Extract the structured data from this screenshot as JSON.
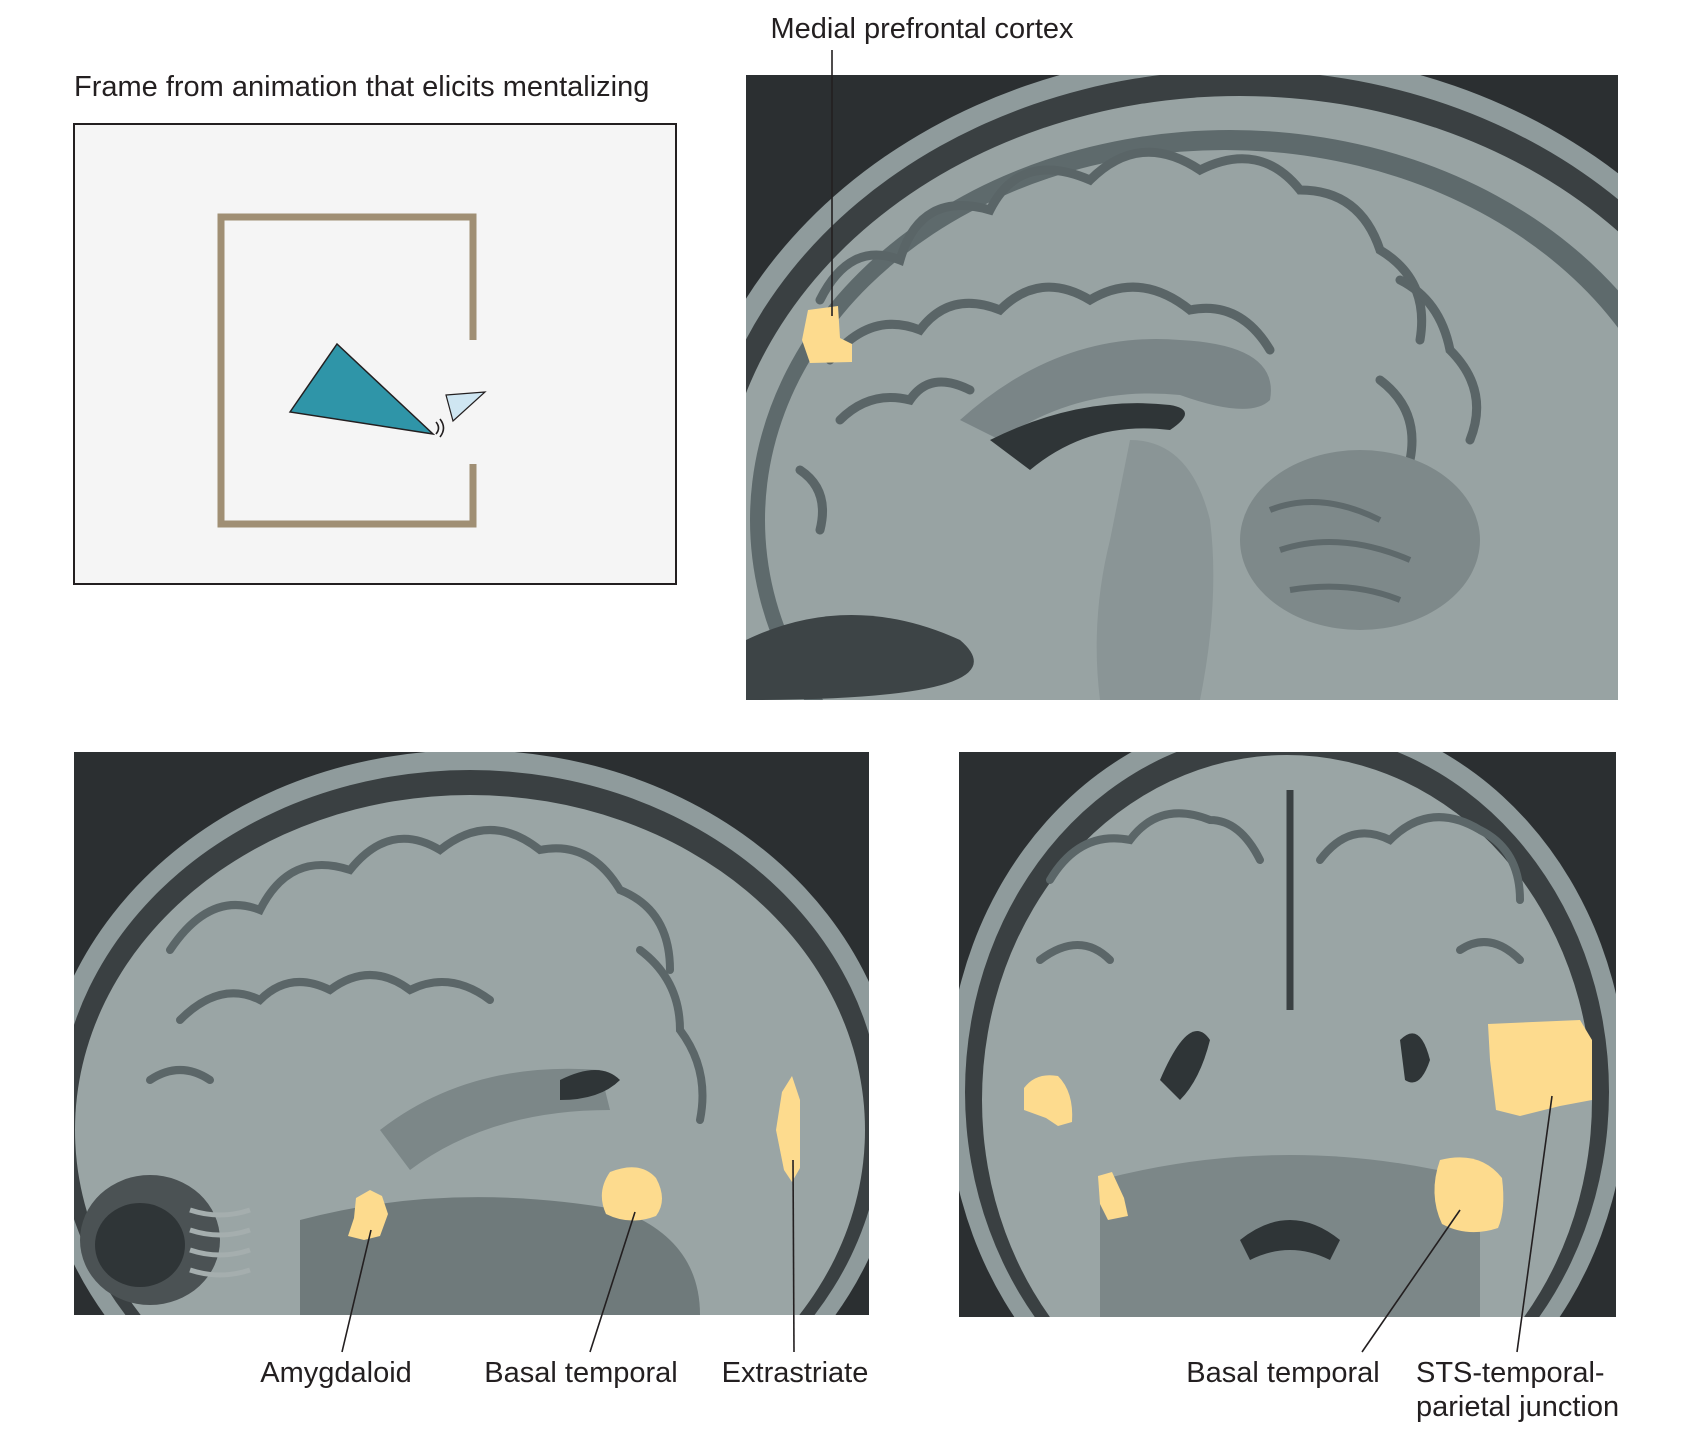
{
  "animation_panel": {
    "caption": "Frame from animation that elicits mentalizing",
    "colors": {
      "background": "#f5f5f5",
      "border": "#231f20",
      "room": "#a08f74",
      "big_triangle": "#2f95a8",
      "small_triangle": "#cfe6f2"
    }
  },
  "sagittal_medial": {
    "label_mpfc": "Medial prefrontal cortex"
  },
  "sagittal_lateral": {
    "label_amygdaloid": "Amygdaloid",
    "label_basal_temporal": "Basal temporal",
    "label_extrastriate": "Extrastriate"
  },
  "coronal": {
    "label_basal_temporal": "Basal temporal",
    "label_sts_line1": "STS-temporal-",
    "label_sts_line2": "parietal junction"
  },
  "colors": {
    "activation": "#fddb8e",
    "mri_dark": "#2b2f31",
    "mri_mid": "#7d8889",
    "mri_light": "#a9b3b3",
    "leader": "#231f20"
  }
}
